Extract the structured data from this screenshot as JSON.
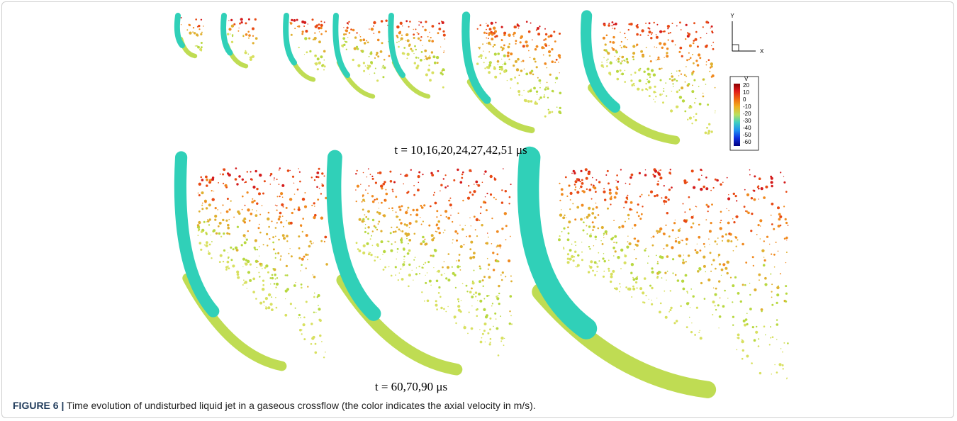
{
  "figure": {
    "axes_triad": {
      "y": "Y",
      "x": "X"
    },
    "colorbar": {
      "title": "V",
      "labels": [
        "20",
        "10",
        "0",
        "-10",
        "-20",
        "-30",
        "-40",
        "-50",
        "-60"
      ]
    },
    "top_caption": "t = 10,16,20,24,27,42,51 μs",
    "bottom_caption": "t = 60,70,90 μs",
    "label": "FIGURE 6 |",
    "caption": "Time evolution of undisturbed liquid jet in a gaseous crossflow (the color indicates the axial velocity in m/s)."
  }
}
